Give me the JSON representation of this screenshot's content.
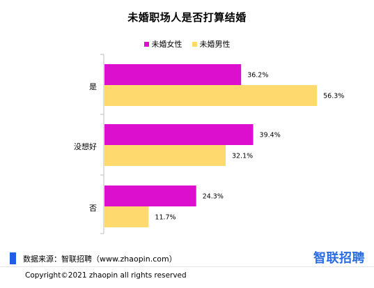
{
  "title": "未婚职场人是否打算结婚",
  "source": "数据来源：智联招聘（www.zhaopin.com）",
  "brand": "智联招聘",
  "copyright": "Copyright©2021 zhaopin all rights reserved",
  "colors": {
    "female": "#dd0fce",
    "male": "#fed96d",
    "source_marker": "#1f5fe8",
    "brand": "#2a6de0"
  },
  "chart_data": {
    "type": "bar",
    "orientation": "horizontal",
    "title": "未婚职场人是否打算结婚",
    "categories": [
      "是",
      "没想好",
      "否"
    ],
    "series": [
      {
        "name": "未婚女性",
        "values": [
          36.2,
          39.4,
          24.3
        ],
        "labels": [
          "36.2%",
          "39.4%",
          "24.3%"
        ]
      },
      {
        "name": "未婚男性",
        "values": [
          56.3,
          32.1,
          11.7
        ],
        "labels": [
          "56.3%",
          "32.1%",
          "11.7%"
        ]
      }
    ],
    "unit": "%",
    "legend_position": "top",
    "grid": false,
    "xlim": [
      0,
      65
    ]
  }
}
